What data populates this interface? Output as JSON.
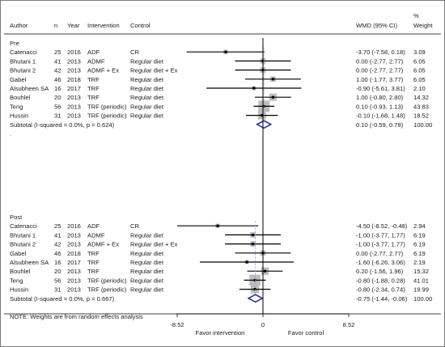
{
  "chart_data": {
    "type": "forest",
    "columns": {
      "author": "Author",
      "n": "n",
      "year": "Year",
      "intervention": "Intervention",
      "control": "Control",
      "effect": "WMD (95% CI)",
      "weight_pct": "%",
      "weight": "Weight"
    },
    "x_ticks": [
      -8.52,
      0,
      8.52
    ],
    "x_tick_labels": [
      "-8.52",
      "0",
      "8.52"
    ],
    "xlim": [
      -8.52,
      8.52
    ],
    "favor_left": "Favor intervention",
    "favor_right": "Favor control",
    "groups": [
      {
        "label": "Pre",
        "studies": [
          {
            "author": "Catenacci",
            "n": "25",
            "year": "2016",
            "intervention": "ADF",
            "control": "CR",
            "wmd": -3.7,
            "lo": -7.58,
            "hi": 0.18,
            "ci_text": "-3.70 (-7.58, 0.18)",
            "weight": 3.09,
            "weight_text": "3.09"
          },
          {
            "author": "Bhutani 1",
            "n": "41",
            "year": "2013",
            "intervention": "ADMF",
            "control": "Regular diet",
            "wmd": 0.0,
            "lo": -2.77,
            "hi": 2.77,
            "ci_text": "0.00 (-2.77, 2.77)",
            "weight": 6.05,
            "weight_text": "6.05"
          },
          {
            "author": "Bhutani 2",
            "n": "42",
            "year": "2013",
            "intervention": "ADMF + Ex",
            "control": "Regular diet + Ex",
            "wmd": 0.0,
            "lo": -2.77,
            "hi": 2.77,
            "ci_text": "0.00 (-2.77, 2.77)",
            "weight": 6.05,
            "weight_text": "6.05"
          },
          {
            "author": "Gabel",
            "n": "46",
            "year": "2018",
            "intervention": "TRF",
            "control": "Regular diet",
            "wmd": 1.0,
            "lo": -1.77,
            "hi": 3.77,
            "ci_text": "1.00 (-1.77, 3.77)",
            "weight": 6.05,
            "weight_text": "6.05"
          },
          {
            "author": "Alsubheen SA",
            "n": "16",
            "year": "2017",
            "intervention": "TRF",
            "control": "Regular diet",
            "wmd": -0.9,
            "lo": -5.61,
            "hi": 3.81,
            "ci_text": "-0.90 (-5.61, 3.81)",
            "weight": 2.1,
            "weight_text": "2.10"
          },
          {
            "author": "Bouhlel",
            "n": "20",
            "year": "2013",
            "intervention": "TRF",
            "control": "Regular diet",
            "wmd": 1.0,
            "lo": -0.8,
            "hi": 2.8,
            "ci_text": "1.00 (-0.80, 2.80)",
            "weight": 14.32,
            "weight_text": "14.32"
          },
          {
            "author": "Teng",
            "n": "56",
            "year": "2013",
            "intervention": "TRF (periodic)",
            "control": "Regular diet",
            "wmd": 0.1,
            "lo": -0.93,
            "hi": 1.13,
            "ci_text": "0.10 (-0.93, 1.13)",
            "weight": 43.83,
            "weight_text": "43.83"
          },
          {
            "author": "Hussin",
            "n": "31",
            "year": "2013",
            "intervention": "TRF (periodic)",
            "control": "Regular diet",
            "wmd": -0.1,
            "lo": -1.68,
            "hi": 1.48,
            "ci_text": "-0.10 (-1.68, 1.48)",
            "weight": 18.52,
            "weight_text": "18.52"
          }
        ],
        "subtotal": {
          "label": "Subtotal  (I-squared = 0.0%, p = 0.624)",
          "wmd": 0.1,
          "lo": -0.59,
          "hi": 0.78,
          "ci_text": "0.10 (-0.59, 0.78)",
          "weight_text": "100.00"
        }
      },
      {
        "label": "Post",
        "studies": [
          {
            "author": "Catenacci",
            "n": "25",
            "year": "2016",
            "intervention": "ADF",
            "control": "CR",
            "wmd": -4.5,
            "lo": -8.52,
            "hi": -0.48,
            "ci_text": "-4.50 (-8.52, -0.48)",
            "weight": 2.94,
            "weight_text": "2.94"
          },
          {
            "author": "Bhutani 1",
            "n": "41",
            "year": "2013",
            "intervention": "ADMF",
            "control": "Regular diet",
            "wmd": -1.0,
            "lo": -3.77,
            "hi": 1.77,
            "ci_text": "-1.00 (-3.77, 1.77)",
            "weight": 6.19,
            "weight_text": "6.19"
          },
          {
            "author": "Bhutani 2",
            "n": "42",
            "year": "2013",
            "intervention": "ADMF + Ex",
            "control": "Regular diet + Ex",
            "wmd": -1.0,
            "lo": -3.77,
            "hi": 1.77,
            "ci_text": "-1.00 (-3.77, 1.77)",
            "weight": 6.19,
            "weight_text": "6.19"
          },
          {
            "author": "Gabel",
            "n": "46",
            "year": "2018",
            "intervention": "TRF",
            "control": "Regular diet",
            "wmd": 0.0,
            "lo": -2.77,
            "hi": 2.77,
            "ci_text": "0.00 (-2.77, 2.77)",
            "weight": 6.19,
            "weight_text": "6.19"
          },
          {
            "author": "Alsubheen SA",
            "n": "16",
            "year": "2017",
            "intervention": "TRF",
            "control": "Regular diet",
            "wmd": -1.6,
            "lo": -6.26,
            "hi": 3.06,
            "ci_text": "-1.60 (-6.26, 3.06)",
            "weight": 2.19,
            "weight_text": "2.19"
          },
          {
            "author": "Bouhlel",
            "n": "20",
            "year": "2013",
            "intervention": "TRF",
            "control": "Regular diet",
            "wmd": 0.2,
            "lo": -1.56,
            "hi": 1.96,
            "ci_text": "0.20 (-1.56, 1.96)",
            "weight": 15.32,
            "weight_text": "15.32"
          },
          {
            "author": "Teng",
            "n": "56",
            "year": "2013",
            "intervention": "TRF (periodic)",
            "control": "Regular diet",
            "wmd": -0.8,
            "lo": -1.88,
            "hi": 0.28,
            "ci_text": "-0.80 (-1.88, 0.28)",
            "weight": 41.01,
            "weight_text": "41.01"
          },
          {
            "author": "Hussin",
            "n": "31",
            "year": "2013",
            "intervention": "TRF (periodic)",
            "control": "Regular diet",
            "wmd": -0.8,
            "lo": -2.34,
            "hi": 0.74,
            "ci_text": "-0.80 (-2.34, 0.74)",
            "weight": 19.99,
            "weight_text": "19.99"
          }
        ],
        "subtotal": {
          "label": "Subtotal  (I-squared = 0.0%, p = 0.667)",
          "wmd": -0.75,
          "lo": -1.44,
          "hi": -0.06,
          "ci_text": "-0.75 (-1.44, -0.06)",
          "weight_text": "100.00"
        }
      }
    ],
    "separator": ".",
    "note": "NOTE: Weights are from random effects analysis",
    "colors": {
      "box": "#bdbdbd",
      "diamond": "#1f2a8c",
      "line": "#000000",
      "dashed": "#9aa0c8"
    }
  }
}
